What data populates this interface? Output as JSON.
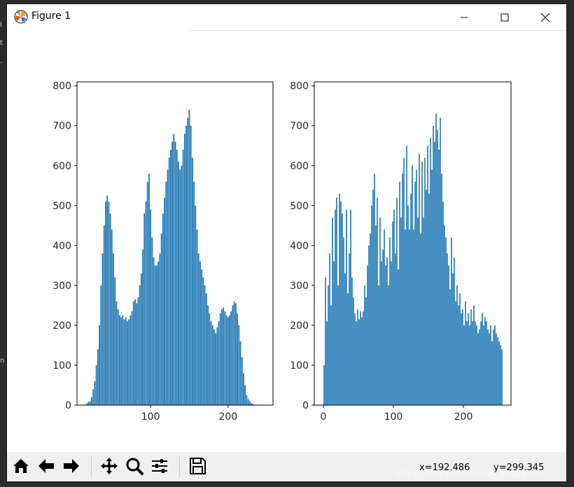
{
  "window": {
    "title": "Figure 1"
  },
  "background": {
    "left_text": [
      "I",
      "t",
      ".",
      "n"
    ]
  },
  "toolbar": {
    "tools": [
      "home-icon",
      "back-arrow-icon",
      "forward-arrow-icon",
      "pan-icon",
      "zoom-icon",
      "configure-subplots-icon",
      "save-icon"
    ],
    "coord_x": "x=192.486",
    "coord_y": "y=299.345"
  },
  "watermark": "https://blog.csdn.net/qq_40626497",
  "colors": {
    "bar": "#1f77b4",
    "axes": "#000000",
    "tick_text": "#262626",
    "toolbar_bg": "#f0f0f0"
  },
  "chart_data": [
    {
      "type": "bar",
      "title": "",
      "xlabel": "",
      "ylabel": "",
      "xlim": [
        5,
        258
      ],
      "ylim": [
        0,
        810
      ],
      "xticks": [
        100,
        200
      ],
      "yticks": [
        0,
        100,
        200,
        300,
        400,
        500,
        600,
        700,
        800
      ],
      "series": [
        {
          "x": [
            18,
            20,
            22,
            24,
            26,
            28,
            30,
            32,
            34,
            36,
            38,
            40,
            42,
            44,
            46,
            48,
            50,
            52,
            54,
            56,
            58,
            60,
            62,
            64,
            66,
            68,
            70,
            72,
            74,
            76,
            78,
            80,
            82,
            84,
            86,
            88,
            90,
            92,
            94,
            96,
            98,
            100,
            102,
            104,
            106,
            108,
            110,
            112,
            114,
            116,
            118,
            120,
            122,
            124,
            126,
            128,
            130,
            132,
            134,
            136,
            138,
            140,
            142,
            144,
            146,
            148,
            150,
            152,
            154,
            156,
            158,
            160,
            162,
            164,
            166,
            168,
            170,
            172,
            174,
            176,
            178,
            180,
            182,
            184,
            186,
            188,
            190,
            192,
            194,
            196,
            198,
            200,
            202,
            204,
            206,
            208,
            210,
            212,
            214,
            216,
            218,
            220,
            222,
            224,
            226,
            228,
            230,
            232,
            234
          ],
          "values": [
            5,
            8,
            10,
            20,
            40,
            60,
            100,
            140,
            200,
            300,
            380,
            450,
            510,
            525,
            510,
            480,
            440,
            380,
            320,
            260,
            240,
            225,
            220,
            225,
            215,
            220,
            210,
            215,
            225,
            235,
            260,
            265,
            255,
            270,
            300,
            330,
            390,
            480,
            510,
            560,
            580,
            490,
            420,
            370,
            350,
            350,
            360,
            380,
            430,
            480,
            520,
            560,
            590,
            620,
            640,
            660,
            680,
            660,
            640,
            610,
            590,
            600,
            640,
            680,
            700,
            720,
            740,
            700,
            620,
            560,
            500,
            440,
            380,
            360,
            340,
            320,
            300,
            280,
            250,
            230,
            210,
            200,
            190,
            180,
            195,
            210,
            230,
            240,
            245,
            235,
            225,
            220,
            225,
            235,
            250,
            260,
            255,
            230,
            200,
            160,
            120,
            80,
            50,
            25,
            15,
            10,
            5,
            3,
            2
          ]
        }
      ]
    },
    {
      "type": "bar",
      "title": "",
      "xlabel": "",
      "ylabel": "",
      "xlim": [
        -13,
        268
      ],
      "ylim": [
        0,
        810
      ],
      "xticks": [
        0,
        100,
        200
      ],
      "yticks": [
        0,
        100,
        200,
        300,
        400,
        500,
        600,
        700,
        800
      ],
      "series": [
        {
          "x": [
            1,
            3,
            5,
            7,
            9,
            11,
            13,
            15,
            17,
            19,
            21,
            23,
            25,
            27,
            29,
            31,
            33,
            35,
            37,
            39,
            41,
            43,
            45,
            47,
            49,
            51,
            53,
            55,
            57,
            59,
            61,
            63,
            65,
            67,
            69,
            71,
            73,
            75,
            77,
            79,
            81,
            83,
            85,
            87,
            89,
            91,
            93,
            95,
            97,
            99,
            101,
            103,
            105,
            107,
            109,
            111,
            113,
            115,
            117,
            119,
            121,
            123,
            125,
            127,
            129,
            131,
            133,
            135,
            137,
            139,
            141,
            143,
            145,
            147,
            149,
            151,
            153,
            155,
            157,
            159,
            161,
            163,
            165,
            167,
            169,
            171,
            173,
            175,
            177,
            179,
            181,
            183,
            185,
            187,
            189,
            191,
            193,
            195,
            197,
            199,
            201,
            203,
            205,
            207,
            209,
            211,
            213,
            215,
            217,
            219,
            221,
            223,
            225,
            227,
            229,
            231,
            233,
            235,
            237,
            239,
            241,
            243,
            245,
            247,
            249,
            251,
            253,
            255
          ],
          "values": [
            100,
            320,
            210,
            300,
            380,
            250,
            470,
            360,
            490,
            520,
            300,
            530,
            510,
            480,
            420,
            330,
            490,
            280,
            380,
            490,
            320,
            270,
            230,
            210,
            240,
            215,
            235,
            220,
            235,
            300,
            270,
            350,
            400,
            430,
            500,
            540,
            580,
            450,
            520,
            300,
            470,
            360,
            390,
            440,
            350,
            370,
            300,
            420,
            360,
            460,
            490,
            380,
            520,
            340,
            560,
            470,
            580,
            620,
            440,
            650,
            500,
            440,
            530,
            600,
            440,
            560,
            590,
            470,
            630,
            430,
            610,
            470,
            620,
            540,
            650,
            530,
            670,
            590,
            700,
            660,
            730,
            690,
            640,
            720,
            580,
            510,
            450,
            420,
            380,
            350,
            290,
            420,
            330,
            370,
            260,
            300,
            250,
            280,
            230,
            240,
            200,
            260,
            210,
            230,
            200,
            240,
            210,
            250,
            210,
            200,
            180,
            190,
            210,
            230,
            200,
            220,
            210,
            190,
            180,
            200,
            160,
            190,
            200,
            180,
            170,
            160,
            150,
            140
          ]
        }
      ]
    }
  ]
}
